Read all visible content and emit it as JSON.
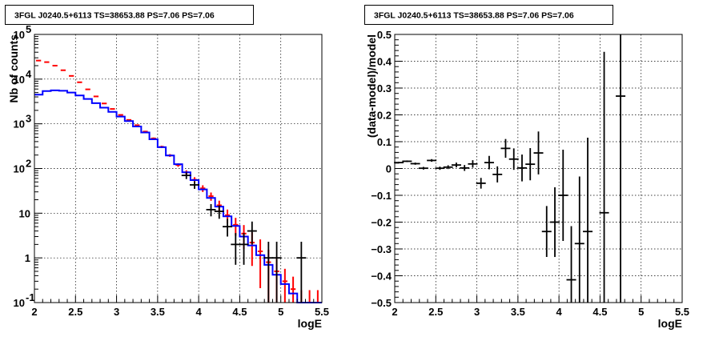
{
  "chart_data": [
    {
      "type": "histogram-log",
      "title": "3FGL J0240.5+6113 TS=38653.88 PS=7.06 PS=7.06",
      "xlabel": "logE",
      "ylabel": "Nb of counts",
      "xlim": [
        2,
        5.5
      ],
      "ylim": [
        0.1,
        100000
      ],
      "yscale": "log",
      "grid": true,
      "x_ticks": [
        "2",
        "2.5",
        "3",
        "3.5",
        "4",
        "4.5",
        "5",
        "5.5"
      ],
      "y_ticks": [
        {
          "value": 0.1,
          "base": "10",
          "exp": "-1"
        },
        {
          "value": 1,
          "label": "1"
        },
        {
          "value": 10,
          "label": "10"
        },
        {
          "value": 100,
          "base": "10",
          "exp": "2"
        },
        {
          "value": 1000,
          "base": "10",
          "exp": "3"
        },
        {
          "value": 10000,
          "base": "10",
          "exp": "4"
        },
        {
          "value": 100000,
          "base": "10",
          "exp": "5"
        }
      ],
      "bin_edges": [
        2.0,
        2.1,
        2.2,
        2.3,
        2.4,
        2.5,
        2.6,
        2.7,
        2.8,
        2.9,
        3.0,
        3.1,
        3.2,
        3.3,
        3.4,
        3.5,
        3.6,
        3.7,
        3.8,
        3.9,
        4.0,
        4.1,
        4.2,
        4.3,
        4.4,
        4.5,
        4.6,
        4.7,
        4.8,
        4.9,
        5.0,
        5.1,
        5.2,
        5.3,
        5.4,
        5.5
      ],
      "series": [
        {
          "color": "#0000ff",
          "style": "step",
          "values": [
            4500,
            5400,
            5600,
            5500,
            5000,
            4300,
            3600,
            2900,
            2300,
            1850,
            1450,
            1150,
            870,
            640,
            450,
            300,
            195,
            125,
            82,
            55,
            34,
            22,
            14,
            8.5,
            5.2,
            3.0,
            1.9,
            1.15,
            0.7,
            0.42,
            0.26,
            0.16,
            0.1,
            0.1,
            0.1
          ]
        },
        {
          "color": "#ff0000",
          "style": "step-errors",
          "values": [
            26000,
            24000,
            20000,
            15800,
            11800,
            8500,
            5900,
            4100,
            2850,
            2150,
            1580,
            1220,
            930,
            670,
            470,
            305,
            196,
            120,
            82,
            56,
            36,
            24,
            15,
            9,
            5.5,
            3.5,
            2.2,
            1.4,
            0.8,
            0.5,
            0.3,
            0.2,
            0.1,
            0.1,
            0.1
          ],
          "err_rel": [
            0.005,
            0.005,
            0.006,
            0.007,
            0.008,
            0.01,
            0.012,
            0.015,
            0.018,
            0.02,
            0.025,
            0.03,
            0.035,
            0.04,
            0.05,
            0.06,
            0.07,
            0.09,
            0.11,
            0.14,
            0.17,
            0.21,
            0.27,
            0.34,
            0.43,
            0.55,
            0.7,
            0.85,
            0.9,
            0.9,
            0.9,
            0.9,
            0.9,
            0.9,
            0.9
          ]
        },
        {
          "color": "#000000",
          "style": "points",
          "points": [
            {
              "x": 3.85,
              "y": 70,
              "lo": 58,
              "hi": 82
            },
            {
              "x": 3.95,
              "y": 43,
              "lo": 35,
              "hi": 52
            },
            {
              "x": 4.15,
              "y": 12,
              "lo": 8.5,
              "hi": 16
            },
            {
              "x": 4.25,
              "y": 11,
              "lo": 7.5,
              "hi": 15
            },
            {
              "x": 4.35,
              "y": 5,
              "lo": 3,
              "hi": 7.5
            },
            {
              "x": 4.45,
              "y": 2,
              "lo": 0.7,
              "hi": 3.6
            },
            {
              "x": 4.55,
              "y": 2,
              "lo": 0.7,
              "hi": 3.6
            },
            {
              "x": 4.65,
              "y": 4,
              "lo": 2,
              "hi": 6.5
            },
            {
              "x": 4.85,
              "y": 1,
              "lo": 0.1,
              "hi": 2.3
            },
            {
              "x": 4.95,
              "y": 1,
              "lo": 0.1,
              "hi": 2.3
            },
            {
              "x": 5.25,
              "y": 1,
              "lo": 0.1,
              "hi": 2.3
            }
          ]
        }
      ]
    },
    {
      "type": "scatter-errorbars",
      "title": "3FGL J0240.5+6113 TS=38653.88 PS=7.06 PS=7.06",
      "xlabel": "logE",
      "ylabel": "(data-model)/model",
      "xlim": [
        2,
        5.5
      ],
      "ylim": [
        -0.5,
        0.5
      ],
      "grid": true,
      "x_ticks": [
        "2",
        "2.5",
        "3",
        "3.5",
        "4",
        "4.5",
        "5",
        "5.5"
      ],
      "y_ticks": [
        "−0.5",
        "−0.4",
        "−0.3",
        "−0.2",
        "−0.1",
        "0",
        "0.1",
        "0.2",
        "0.3",
        "0.4",
        "0.5"
      ],
      "points": [
        {
          "x": 2.05,
          "y": 0.022,
          "err": 0.003
        },
        {
          "x": 2.15,
          "y": 0.027,
          "err": 0.003
        },
        {
          "x": 2.25,
          "y": 0.018,
          "err": 0.004
        },
        {
          "x": 2.35,
          "y": 0.001,
          "err": 0.005
        },
        {
          "x": 2.45,
          "y": 0.03,
          "err": 0.005
        },
        {
          "x": 2.55,
          "y": 0.001,
          "err": 0.006
        },
        {
          "x": 2.65,
          "y": 0.005,
          "err": 0.007
        },
        {
          "x": 2.75,
          "y": 0.013,
          "err": 0.009
        },
        {
          "x": 2.85,
          "y": 0.002,
          "err": 0.011
        },
        {
          "x": 2.95,
          "y": 0.017,
          "err": 0.014
        },
        {
          "x": 3.05,
          "y": -0.055,
          "err": 0.02
        },
        {
          "x": 3.15,
          "y": 0.022,
          "err": 0.025
        },
        {
          "x": 3.25,
          "y": -0.022,
          "err": 0.03
        },
        {
          "x": 3.35,
          "y": 0.075,
          "err": 0.035
        },
        {
          "x": 3.45,
          "y": 0.035,
          "err": 0.04
        },
        {
          "x": 3.55,
          "y": 0.002,
          "err": 0.05
        },
        {
          "x": 3.65,
          "y": 0.016,
          "err": 0.06
        },
        {
          "x": 3.75,
          "y": 0.058,
          "err": 0.08
        },
        {
          "x": 3.85,
          "y": -0.235,
          "err": 0.095
        },
        {
          "x": 3.95,
          "y": -0.2,
          "err": 0.13
        },
        {
          "x": 4.05,
          "y": -0.1,
          "err": 0.17
        },
        {
          "x": 4.15,
          "y": -0.415,
          "err": 0.2
        },
        {
          "x": 4.25,
          "y": -0.28,
          "err": 0.25
        },
        {
          "x": 4.35,
          "y": -0.235,
          "err": 0.35
        },
        {
          "x": 4.55,
          "y": -0.165,
          "err": 0.6
        },
        {
          "x": 4.75,
          "y": 0.27,
          "err": 0.8
        }
      ]
    }
  ]
}
